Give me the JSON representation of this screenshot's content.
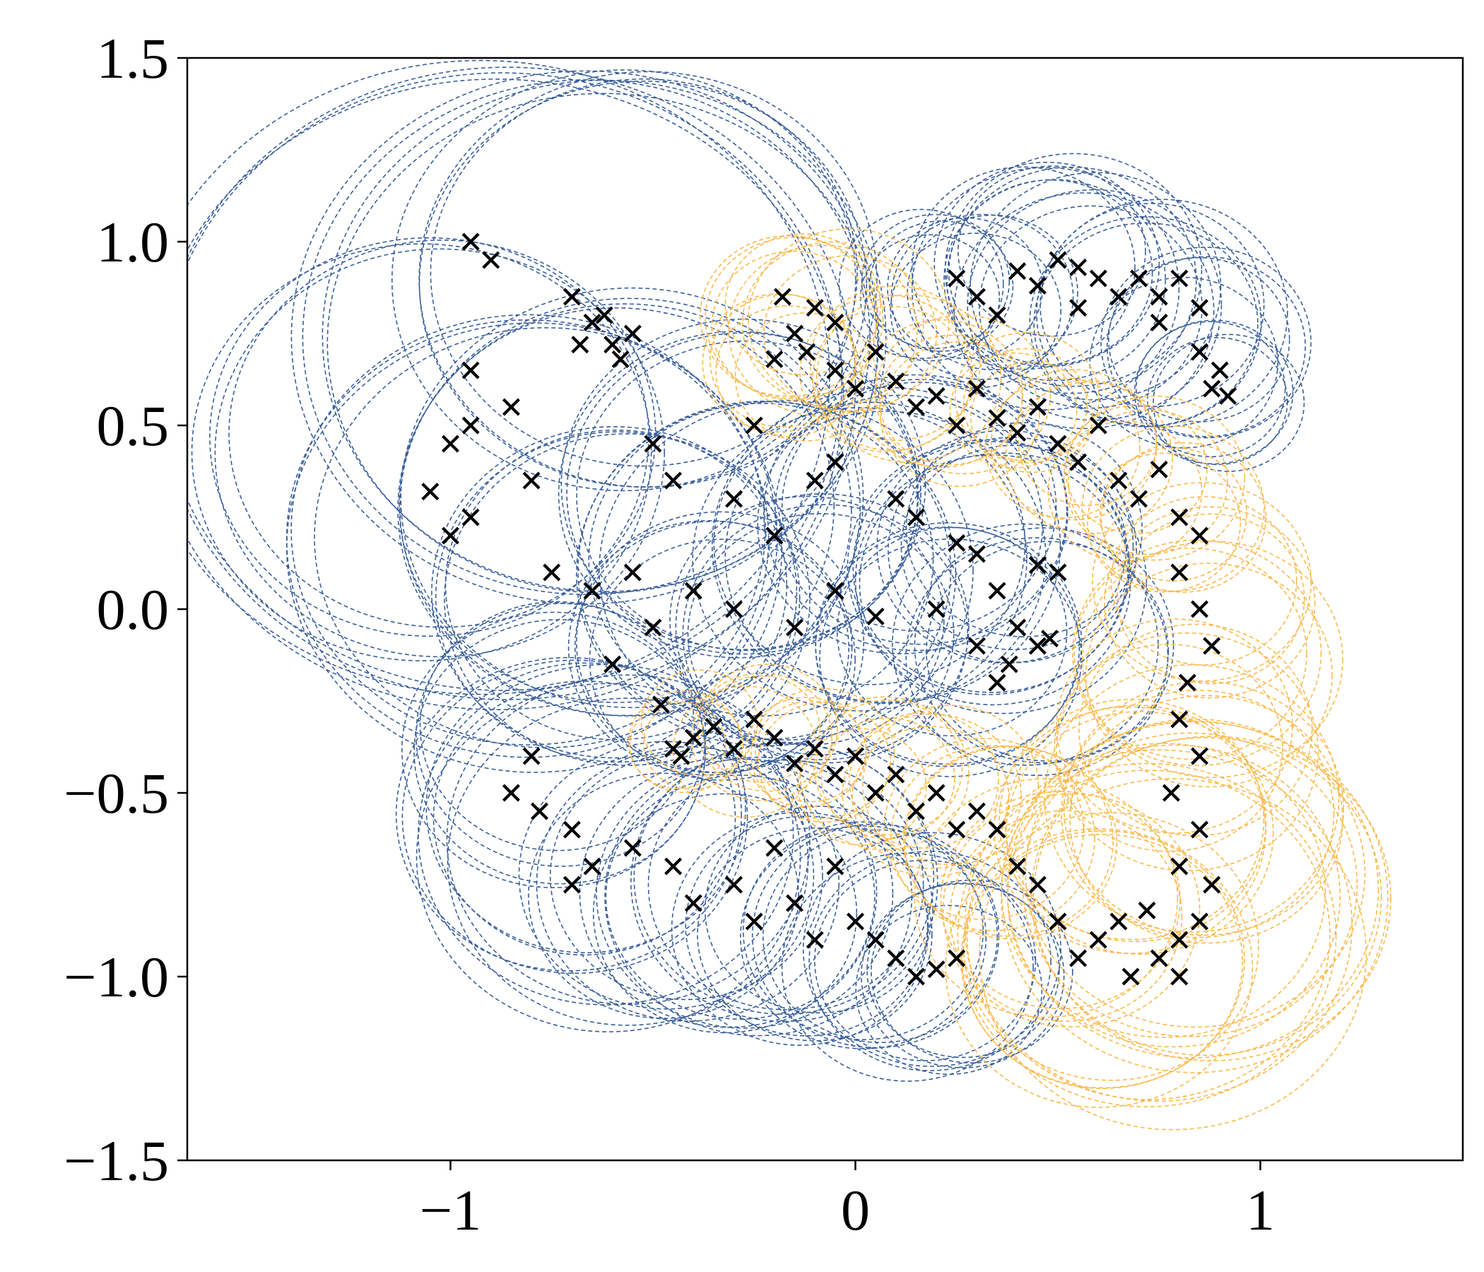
{
  "chart_data": {
    "type": "scatter",
    "title": "",
    "xlabel": "",
    "ylabel": "",
    "xlim": [
      -1.65,
      1.5
    ],
    "ylim": [
      -1.5,
      1.5
    ],
    "grid": false,
    "legend": "none",
    "x_ticks": [
      {
        "value": -1,
        "label": "−1"
      },
      {
        "value": 0,
        "label": "0"
      },
      {
        "value": 1,
        "label": "1"
      }
    ],
    "y_ticks": [
      {
        "value": 1.5,
        "label": "1.5"
      },
      {
        "value": 1.0,
        "label": "1.0"
      },
      {
        "value": 0.5,
        "label": "0.5"
      },
      {
        "value": 0.0,
        "label": "0.0"
      },
      {
        "value": -0.5,
        "label": "−0.5"
      },
      {
        "value": -1.0,
        "label": "−1.0"
      },
      {
        "value": -1.5,
        "label": "−1.5"
      }
    ],
    "colors": {
      "class_a_circles": "#3a5f9a",
      "class_b_circles": "#fbb94c",
      "markers": "#000000"
    },
    "marker_symbol": "x",
    "circle_style": "dashed",
    "class_a_circles": [
      {
        "cx": -0.9,
        "cy": 0.6,
        "r": 0.85
      },
      {
        "cx": -1.05,
        "cy": 0.45,
        "r": 0.55
      },
      {
        "cx": -0.65,
        "cy": 0.75,
        "r": 0.7
      },
      {
        "cx": -0.55,
        "cy": 0.9,
        "r": 0.55
      },
      {
        "cx": -0.8,
        "cy": 0.2,
        "r": 0.6
      },
      {
        "cx": -0.55,
        "cy": 0.3,
        "r": 0.55
      },
      {
        "cx": -0.6,
        "cy": 0.05,
        "r": 0.45
      },
      {
        "cx": -0.3,
        "cy": 0.3,
        "r": 0.45
      },
      {
        "cx": -0.2,
        "cy": 0.1,
        "r": 0.45
      },
      {
        "cx": 0.05,
        "cy": 0.15,
        "r": 0.4
      },
      {
        "cx": 0.15,
        "cy": 0.25,
        "r": 0.35
      },
      {
        "cx": 0.35,
        "cy": 0.1,
        "r": 0.35
      },
      {
        "cx": 0.45,
        "cy": -0.1,
        "r": 0.3
      },
      {
        "cx": 0.4,
        "cy": 0.2,
        "r": 0.3
      },
      {
        "cx": 0.25,
        "cy": -0.1,
        "r": 0.3
      },
      {
        "cx": -0.1,
        "cy": -0.05,
        "r": 0.35
      },
      {
        "cx": -0.35,
        "cy": -0.1,
        "r": 0.35
      },
      {
        "cx": -0.7,
        "cy": -0.55,
        "r": 0.4
      },
      {
        "cx": -0.6,
        "cy": -0.65,
        "r": 0.45
      },
      {
        "cx": -0.75,
        "cy": -0.35,
        "r": 0.35
      },
      {
        "cx": -0.45,
        "cy": -0.75,
        "r": 0.35
      },
      {
        "cx": -0.3,
        "cy": -0.8,
        "r": 0.35
      },
      {
        "cx": -0.1,
        "cy": -0.85,
        "r": 0.3
      },
      {
        "cx": 0.05,
        "cy": -0.9,
        "r": 0.3
      },
      {
        "cx": 0.15,
        "cy": -0.95,
        "r": 0.3
      },
      {
        "cx": 0.25,
        "cy": -1.0,
        "r": 0.25
      },
      {
        "cx": -0.2,
        "cy": -0.75,
        "r": 0.35
      },
      {
        "cx": 0.3,
        "cy": 0.85,
        "r": 0.2
      },
      {
        "cx": 0.5,
        "cy": 0.9,
        "r": 0.3
      },
      {
        "cx": 0.6,
        "cy": 0.85,
        "r": 0.3
      },
      {
        "cx": 0.75,
        "cy": 0.8,
        "r": 0.3
      },
      {
        "cx": 0.85,
        "cy": 0.7,
        "r": 0.25
      },
      {
        "cx": 0.9,
        "cy": 0.6,
        "r": 0.2
      },
      {
        "cx": 0.45,
        "cy": 0.95,
        "r": 0.25
      },
      {
        "cx": 0.2,
        "cy": 0.88,
        "r": 0.18
      }
    ],
    "class_b_circles": [
      {
        "cx": -0.15,
        "cy": 0.8,
        "r": 0.2
      },
      {
        "cx": -0.05,
        "cy": 0.75,
        "r": 0.22
      },
      {
        "cx": -0.15,
        "cy": 0.65,
        "r": 0.2
      },
      {
        "cx": 0.1,
        "cy": 0.65,
        "r": 0.2
      },
      {
        "cx": 0.25,
        "cy": 0.55,
        "r": 0.2
      },
      {
        "cx": 0.4,
        "cy": 0.55,
        "r": 0.18
      },
      {
        "cx": 0.55,
        "cy": 0.45,
        "r": 0.2
      },
      {
        "cx": 0.7,
        "cy": 0.35,
        "r": 0.2
      },
      {
        "cx": 0.8,
        "cy": 0.25,
        "r": 0.2
      },
      {
        "cx": 0.85,
        "cy": 0.05,
        "r": 0.25
      },
      {
        "cx": 0.85,
        "cy": -0.15,
        "r": 0.3
      },
      {
        "cx": 0.8,
        "cy": -0.35,
        "r": 0.3
      },
      {
        "cx": 0.85,
        "cy": -0.55,
        "r": 0.35
      },
      {
        "cx": 0.8,
        "cy": -0.75,
        "r": 0.4
      },
      {
        "cx": 0.75,
        "cy": -0.9,
        "r": 0.45
      },
      {
        "cx": 0.85,
        "cy": -0.8,
        "r": 0.45
      },
      {
        "cx": 0.6,
        "cy": -0.95,
        "r": 0.35
      },
      {
        "cx": 0.5,
        "cy": -0.8,
        "r": 0.3
      },
      {
        "cx": 0.35,
        "cy": -0.6,
        "r": 0.25
      },
      {
        "cx": 0.2,
        "cy": -0.5,
        "r": 0.2
      },
      {
        "cx": 0.05,
        "cy": -0.45,
        "r": 0.18
      },
      {
        "cx": -0.1,
        "cy": -0.4,
        "r": 0.15
      },
      {
        "cx": -0.25,
        "cy": -0.35,
        "r": 0.15
      },
      {
        "cx": -0.4,
        "cy": -0.33,
        "r": 0.12
      },
      {
        "cx": 0.7,
        "cy": -0.6,
        "r": 0.35
      }
    ],
    "class_a_markers": [
      [
        -0.95,
        1.0
      ],
      [
        -0.9,
        0.95
      ],
      [
        -0.7,
        0.85
      ],
      [
        -0.65,
        0.78
      ],
      [
        -0.6,
        0.72
      ],
      [
        -0.62,
        0.8
      ],
      [
        -0.55,
        0.75
      ],
      [
        -0.68,
        0.72
      ],
      [
        -0.58,
        0.68
      ],
      [
        -0.95,
        0.65
      ],
      [
        -1.0,
        0.45
      ],
      [
        -0.95,
        0.5
      ],
      [
        -1.05,
        0.32
      ],
      [
        -1.0,
        0.2
      ],
      [
        -0.95,
        0.25
      ],
      [
        -0.8,
        0.35
      ],
      [
        -0.85,
        0.55
      ],
      [
        -0.5,
        0.45
      ],
      [
        -0.45,
        0.35
      ],
      [
        -0.3,
        0.3
      ],
      [
        -0.25,
        0.5
      ],
      [
        -0.2,
        0.2
      ],
      [
        -0.1,
        0.35
      ],
      [
        -0.05,
        0.4
      ],
      [
        0.1,
        0.3
      ],
      [
        0.15,
        0.25
      ],
      [
        0.25,
        0.18
      ],
      [
        0.3,
        0.15
      ],
      [
        0.35,
        0.05
      ],
      [
        0.45,
        0.12
      ],
      [
        0.5,
        0.1
      ],
      [
        0.4,
        -0.05
      ],
      [
        0.45,
        -0.1
      ],
      [
        0.48,
        -0.08
      ],
      [
        0.38,
        -0.15
      ],
      [
        0.35,
        -0.2
      ],
      [
        0.3,
        -0.1
      ],
      [
        0.2,
        0.0
      ],
      [
        0.05,
        -0.02
      ],
      [
        -0.05,
        0.05
      ],
      [
        -0.15,
        -0.05
      ],
      [
        -0.3,
        0.0
      ],
      [
        -0.4,
        0.05
      ],
      [
        -0.55,
        0.1
      ],
      [
        -0.65,
        0.05
      ],
      [
        -0.75,
        0.1
      ],
      [
        -0.5,
        -0.05
      ],
      [
        -0.6,
        -0.15
      ],
      [
        -0.8,
        -0.4
      ],
      [
        -0.85,
        -0.5
      ],
      [
        -0.78,
        -0.55
      ],
      [
        -0.7,
        -0.6
      ],
      [
        -0.65,
        -0.7
      ],
      [
        -0.7,
        -0.75
      ],
      [
        -0.55,
        -0.65
      ],
      [
        -0.45,
        -0.7
      ],
      [
        -0.4,
        -0.8
      ],
      [
        -0.3,
        -0.75
      ],
      [
        -0.2,
        -0.65
      ],
      [
        -0.15,
        -0.8
      ],
      [
        -0.05,
        -0.7
      ],
      [
        0.0,
        -0.85
      ],
      [
        0.05,
        -0.9
      ],
      [
        0.1,
        -0.95
      ],
      [
        0.15,
        -1.0
      ],
      [
        0.2,
        -0.98
      ],
      [
        0.25,
        -0.95
      ],
      [
        -0.1,
        -0.9
      ],
      [
        -0.25,
        -0.85
      ],
      [
        0.25,
        0.9
      ],
      [
        0.3,
        0.85
      ],
      [
        0.4,
        0.92
      ],
      [
        0.45,
        0.88
      ],
      [
        0.5,
        0.95
      ],
      [
        0.55,
        0.93
      ],
      [
        0.6,
        0.9
      ],
      [
        0.65,
        0.85
      ],
      [
        0.7,
        0.9
      ],
      [
        0.75,
        0.85
      ],
      [
        0.8,
        0.9
      ],
      [
        0.85,
        0.82
      ],
      [
        0.75,
        0.78
      ],
      [
        0.85,
        0.7
      ],
      [
        0.9,
        0.65
      ],
      [
        0.88,
        0.6
      ],
      [
        0.92,
        0.58
      ],
      [
        0.35,
        0.8
      ],
      [
        0.55,
        0.82
      ]
    ],
    "class_b_markers": [
      [
        -0.18,
        0.85
      ],
      [
        -0.1,
        0.82
      ],
      [
        -0.05,
        0.78
      ],
      [
        -0.15,
        0.75
      ],
      [
        -0.12,
        0.7
      ],
      [
        -0.2,
        0.68
      ],
      [
        -0.05,
        0.65
      ],
      [
        0.0,
        0.6
      ],
      [
        0.05,
        0.7
      ],
      [
        0.1,
        0.62
      ],
      [
        0.15,
        0.55
      ],
      [
        0.2,
        0.58
      ],
      [
        0.25,
        0.5
      ],
      [
        0.3,
        0.6
      ],
      [
        0.35,
        0.52
      ],
      [
        0.4,
        0.48
      ],
      [
        0.45,
        0.55
      ],
      [
        0.5,
        0.45
      ],
      [
        0.55,
        0.4
      ],
      [
        0.6,
        0.5
      ],
      [
        0.65,
        0.35
      ],
      [
        0.7,
        0.3
      ],
      [
        0.75,
        0.38
      ],
      [
        0.8,
        0.25
      ],
      [
        0.85,
        0.2
      ],
      [
        0.8,
        0.1
      ],
      [
        0.85,
        0.0
      ],
      [
        0.88,
        -0.1
      ],
      [
        0.82,
        -0.2
      ],
      [
        0.8,
        -0.3
      ],
      [
        0.85,
        -0.4
      ],
      [
        0.78,
        -0.5
      ],
      [
        0.85,
        -0.6
      ],
      [
        0.8,
        -0.7
      ],
      [
        0.88,
        -0.75
      ],
      [
        0.85,
        -0.85
      ],
      [
        0.8,
        -0.9
      ],
      [
        0.75,
        -0.95
      ],
      [
        0.8,
        -1.0
      ],
      [
        0.72,
        -0.82
      ],
      [
        0.65,
        -0.85
      ],
      [
        0.6,
        -0.9
      ],
      [
        0.68,
        -1.0
      ],
      [
        0.55,
        -0.95
      ],
      [
        0.5,
        -0.85
      ],
      [
        0.45,
        -0.75
      ],
      [
        0.4,
        -0.7
      ],
      [
        0.35,
        -0.6
      ],
      [
        0.3,
        -0.55
      ],
      [
        0.25,
        -0.6
      ],
      [
        0.2,
        -0.5
      ],
      [
        0.15,
        -0.55
      ],
      [
        0.1,
        -0.45
      ],
      [
        0.05,
        -0.5
      ],
      [
        0.0,
        -0.4
      ],
      [
        -0.05,
        -0.45
      ],
      [
        -0.1,
        -0.38
      ],
      [
        -0.15,
        -0.42
      ],
      [
        -0.2,
        -0.35
      ],
      [
        -0.25,
        -0.3
      ],
      [
        -0.3,
        -0.38
      ],
      [
        -0.35,
        -0.32
      ],
      [
        -0.4,
        -0.35
      ],
      [
        -0.45,
        -0.38
      ],
      [
        -0.48,
        -0.26
      ],
      [
        -0.43,
        -0.4
      ]
    ]
  }
}
